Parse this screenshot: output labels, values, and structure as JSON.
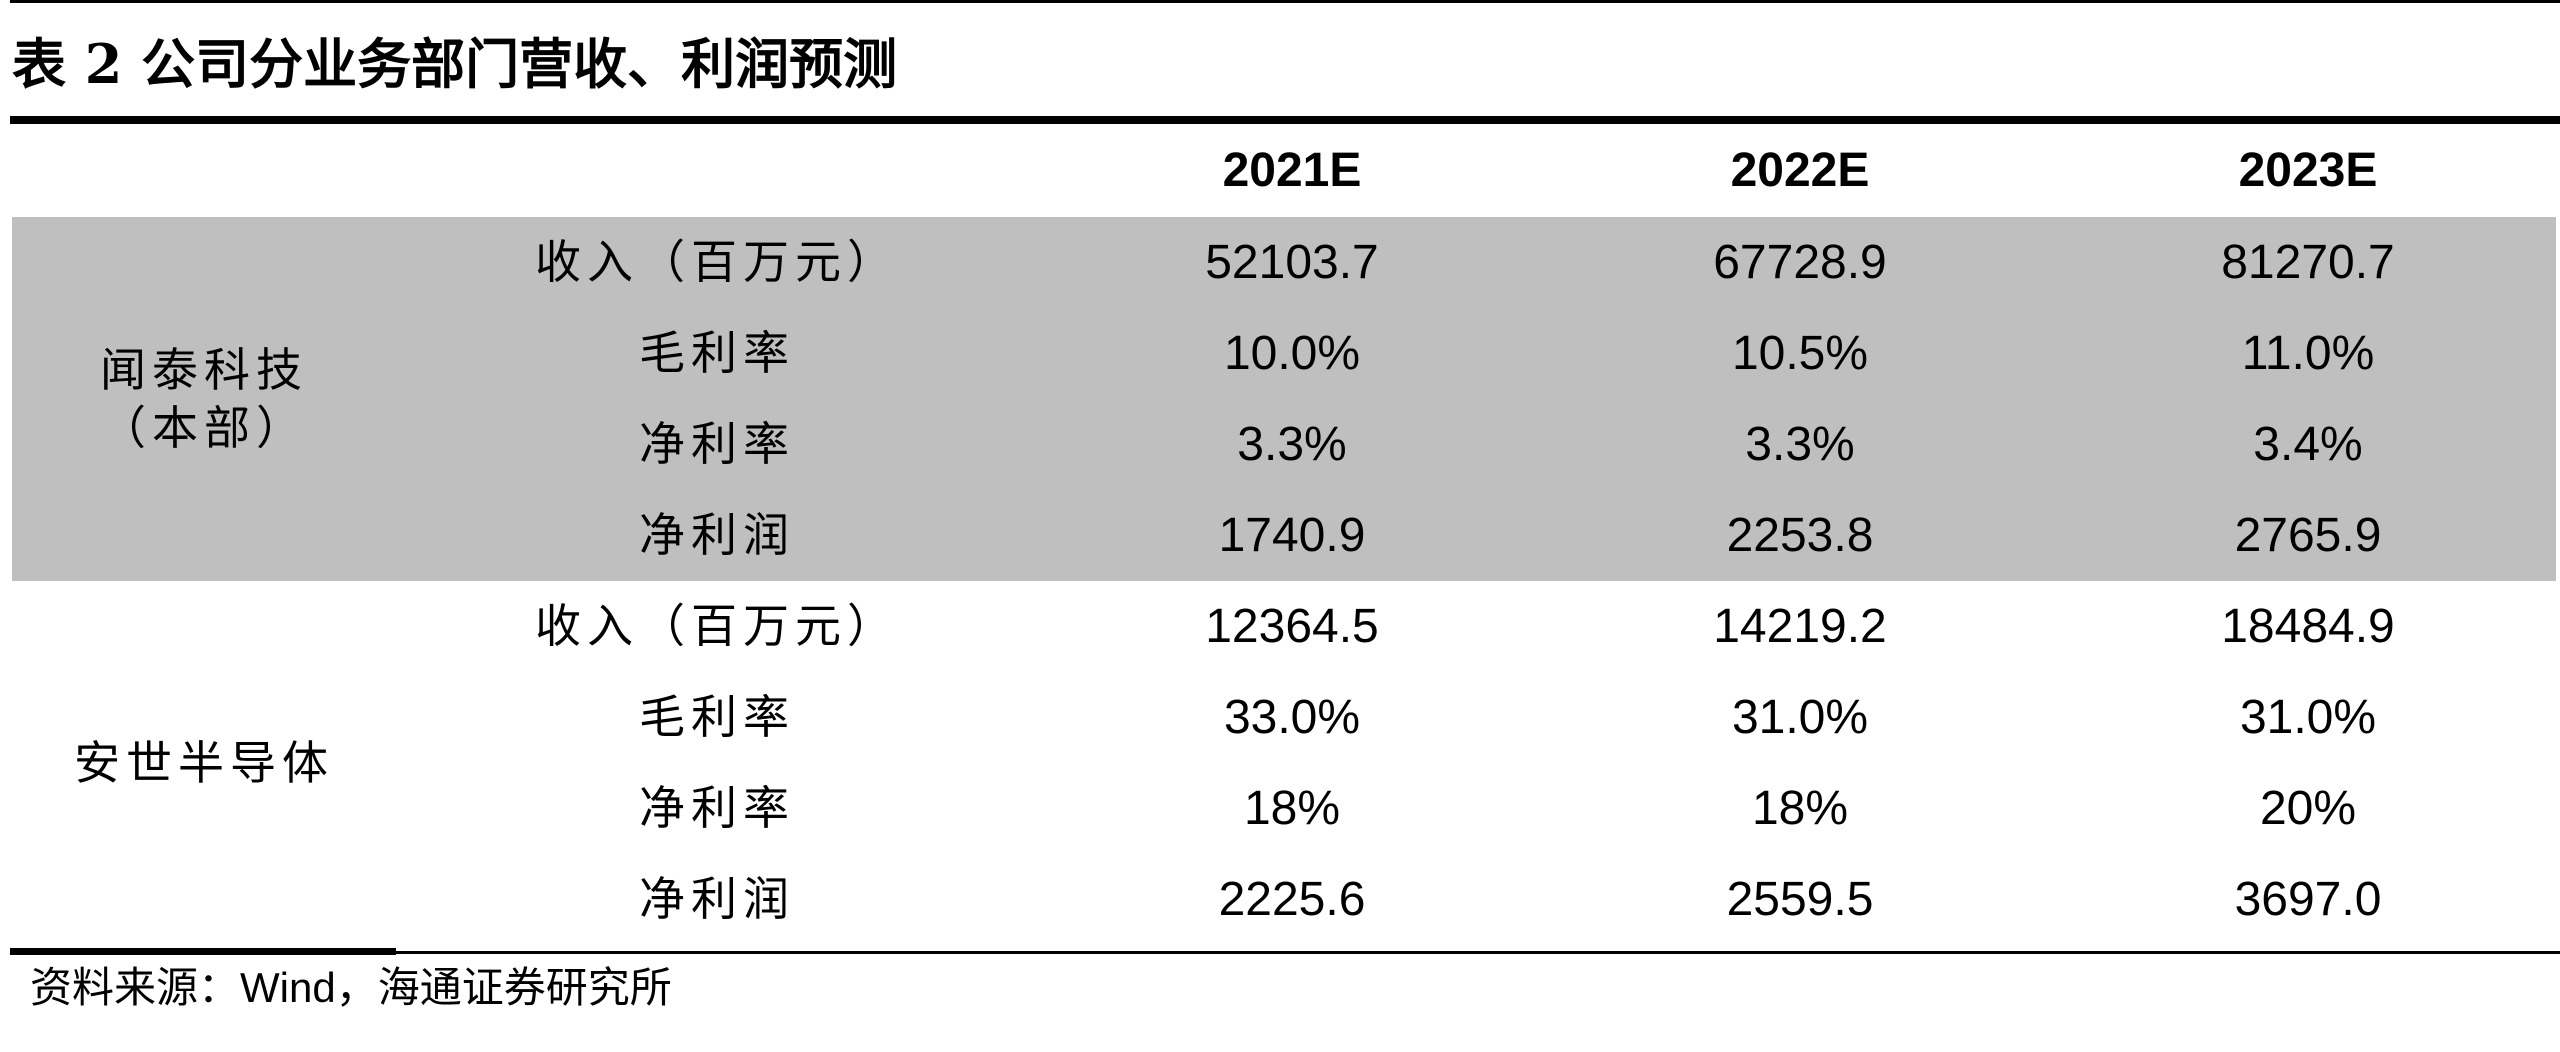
{
  "title": "表 2 公司分业务部门营收、利润预测",
  "columns": [
    "2021E",
    "2022E",
    "2023E"
  ],
  "groups": [
    {
      "name": "闻泰科技（本部）",
      "shaded": true,
      "rows": [
        {
          "metric": "收入（百万元）",
          "values": [
            "52103.7",
            "67728.9",
            "81270.7"
          ]
        },
        {
          "metric": "毛利率",
          "values": [
            "10.0%",
            "10.5%",
            "11.0%"
          ]
        },
        {
          "metric": "净利率",
          "values": [
            "3.3%",
            "3.3%",
            "3.4%"
          ]
        },
        {
          "metric": "净利润",
          "values": [
            "1740.9",
            "2253.8",
            "2765.9"
          ]
        }
      ]
    },
    {
      "name": "安世半导体",
      "shaded": false,
      "rows": [
        {
          "metric": "收入（百万元）",
          "values": [
            "12364.5",
            "14219.2",
            "18484.9"
          ]
        },
        {
          "metric": "毛利率",
          "values": [
            "33.0%",
            "31.0%",
            "31.0%"
          ]
        },
        {
          "metric": "净利率",
          "values": [
            "18%",
            "18%",
            "20%"
          ]
        },
        {
          "metric": "净利润",
          "values": [
            "2225.6",
            "2559.5",
            "3697.0"
          ]
        }
      ]
    }
  ],
  "source": {
    "prefix": "资料来源：",
    "wind": "Wind",
    "suffix": "，海通证券研究所"
  },
  "colors": {
    "shade": "#bfbfbf",
    "rule": "#000000"
  }
}
